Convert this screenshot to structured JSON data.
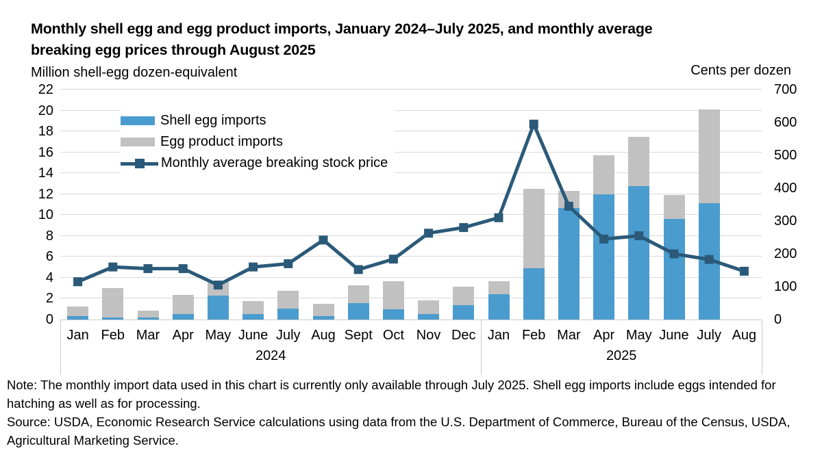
{
  "title_lines": [
    "Monthly shell egg and egg product imports, January 2024–July 2025, and monthly average",
    "breaking egg prices through August 2025"
  ],
  "axis_left_unit": "Million shell-egg dozen-equivalent",
  "axis_right_unit": "Cents per dozen",
  "legend": {
    "shell": "Shell egg imports",
    "product": "Egg product imports",
    "price": "Monthly average breaking stock price"
  },
  "note": "Note: The monthly import data used in this chart is currently only available through July 2025. Shell egg imports include eggs intended for hatching as well as for processing.",
  "source": "Source: USDA, Economic Research Service calculations using data from the U.S. Department of Commerce, Bureau of the Census, USDA, Agricultural Marketing Service.",
  "colors": {
    "shell_bar": "#4a9cce",
    "product_bar": "#c1c1c1",
    "price_line": "#2b5a79",
    "gridline": "#d9d9d9",
    "separator": "#c9c9c9"
  },
  "chart_data": {
    "type": "combo-stacked-bar-line",
    "categories": [
      "Jan",
      "Feb",
      "Mar",
      "Apr",
      "May",
      "June",
      "July",
      "Aug",
      "Sept",
      "Oct",
      "Nov",
      "Dec",
      "Jan",
      "Feb",
      "Mar",
      "Apr",
      "May",
      "June",
      "July",
      "Aug"
    ],
    "year_groups": [
      {
        "label": "2024",
        "count": 12
      },
      {
        "label": "2025",
        "count": 8
      }
    ],
    "series": [
      {
        "name": "Shell egg imports",
        "type": "bar",
        "axis": "left",
        "values": [
          0.35,
          0.2,
          0.2,
          0.5,
          2.3,
          0.55,
          1.05,
          0.3,
          1.6,
          1.0,
          0.55,
          1.4,
          2.45,
          4.9,
          10.7,
          12.0,
          12.8,
          9.6,
          11.1,
          null
        ]
      },
      {
        "name": "Egg product imports",
        "type": "bar",
        "axis": "left",
        "values": [
          0.9,
          2.8,
          0.65,
          1.85,
          1.3,
          1.25,
          1.7,
          1.2,
          1.7,
          2.7,
          1.3,
          1.75,
          1.2,
          7.6,
          1.6,
          3.7,
          4.7,
          2.3,
          9.0,
          null
        ]
      },
      {
        "name": "Monthly average breaking stock price",
        "type": "line",
        "axis": "right",
        "values": [
          115,
          160,
          155,
          155,
          105,
          160,
          170,
          242,
          152,
          184,
          263,
          280,
          310,
          595,
          345,
          245,
          255,
          200,
          183,
          147
        ]
      }
    ],
    "left_axis": {
      "label": "Million shell-egg dozen-equivalent",
      "min": 0,
      "max": 22,
      "step": 2
    },
    "right_axis": {
      "label": "Cents per dozen",
      "min": 0,
      "max": 700,
      "step": 100
    },
    "grid": true,
    "legend_position": "top-left-inside",
    "bars_available_through": "July 2025"
  }
}
